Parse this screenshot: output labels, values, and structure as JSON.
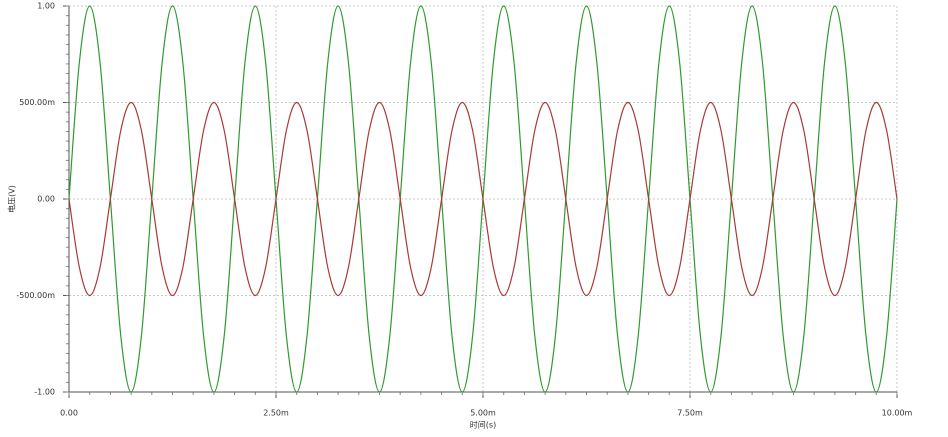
{
  "chart_data": {
    "type": "line",
    "x_label": "时间(s)",
    "y_label": "电压(V)",
    "x": [
      0,
      0.000125,
      0.00025,
      0.000375,
      0.0005,
      0.000625,
      0.00075,
      0.000875,
      0.001,
      0.001125,
      0.00125,
      0.001375,
      0.0015,
      0.001625,
      0.00175,
      0.001875,
      0.002,
      0.002125,
      0.00225,
      0.002375,
      0.0025,
      0.002625,
      0.00275,
      0.002875,
      0.003,
      0.003125,
      0.00325,
      0.003375,
      0.0035,
      0.003625,
      0.00375,
      0.003875,
      0.004,
      0.004125,
      0.00425,
      0.004375,
      0.0045,
      0.004625,
      0.00475,
      0.004875,
      0.005,
      0.005125,
      0.00525,
      0.005375,
      0.0055,
      0.005625,
      0.00575,
      0.005875,
      0.006,
      0.006125,
      0.00625,
      0.006375,
      0.0065,
      0.006625,
      0.00675,
      0.006875,
      0.007,
      0.007125,
      0.00725,
      0.007375,
      0.0075,
      0.007625,
      0.00775,
      0.007875,
      0.008,
      0.008125,
      0.00825,
      0.008375,
      0.0085,
      0.008625,
      0.00875,
      0.008875,
      0.009,
      0.009125,
      0.00925,
      0.009375,
      0.0095,
      0.009625,
      0.00975,
      0.009875,
      0.01
    ],
    "series": [
      {
        "color": "#2f9a2f",
        "values": [
          0,
          0.707,
          1,
          0.707,
          0,
          -0.707,
          -1,
          -0.707,
          0,
          0.707,
          1,
          0.707,
          0,
          -0.707,
          -1,
          -0.707,
          0,
          0.707,
          1,
          0.707,
          0,
          -0.707,
          -1,
          -0.707,
          0,
          0.707,
          1,
          0.707,
          0,
          -0.707,
          -1,
          -0.707,
          0,
          0.707,
          1,
          0.707,
          0,
          -0.707,
          -1,
          -0.707,
          0,
          0.707,
          1,
          0.707,
          0,
          -0.707,
          -1,
          -0.707,
          0,
          0.707,
          1,
          0.707,
          0,
          -0.707,
          -1,
          -0.707,
          0,
          0.707,
          1,
          0.707,
          0,
          -0.707,
          -1,
          -0.707,
          0,
          0.707,
          1,
          0.707,
          0,
          -0.707,
          -1,
          -0.707,
          0,
          0.707,
          1,
          0.707,
          0,
          -0.707,
          -1,
          -0.707,
          0
        ]
      },
      {
        "color": "#a83a3a",
        "values": [
          0,
          -0.354,
          -0.5,
          -0.354,
          0,
          0.354,
          0.5,
          0.354,
          0,
          -0.354,
          -0.5,
          -0.354,
          0,
          0.354,
          0.5,
          0.354,
          0,
          -0.354,
          -0.5,
          -0.354,
          0,
          0.354,
          0.5,
          0.354,
          0,
          -0.354,
          -0.5,
          -0.354,
          0,
          0.354,
          0.5,
          0.354,
          0,
          -0.354,
          -0.5,
          -0.354,
          0,
          0.354,
          0.5,
          0.354,
          0,
          -0.354,
          -0.5,
          -0.354,
          0,
          0.354,
          0.5,
          0.354,
          0,
          -0.354,
          -0.5,
          -0.354,
          0,
          0.354,
          0.5,
          0.354,
          0,
          -0.354,
          -0.5,
          -0.354,
          0,
          0.354,
          0.5,
          0.354,
          0,
          -0.354,
          -0.5,
          -0.354,
          0,
          0.354,
          0.5,
          0.354,
          0,
          -0.354,
          -0.5,
          -0.354,
          0,
          0.354,
          0.5,
          0.354,
          0
        ]
      }
    ],
    "xlim": [
      0,
      0.01
    ],
    "xticks": [
      {
        "value": 0,
        "label": "0.00"
      },
      {
        "value": 0.0025,
        "label": "2.50m"
      },
      {
        "value": 0.005,
        "label": "5.00m"
      },
      {
        "value": 0.0075,
        "label": "7.50m"
      },
      {
        "value": 0.01,
        "label": "10.00m"
      }
    ],
    "ylim": [
      -1,
      1
    ],
    "yticks": [
      {
        "value": -1,
        "label": "-1.00"
      },
      {
        "value": -0.5,
        "label": "-500.00m"
      },
      {
        "value": 0,
        "label": "0.00"
      },
      {
        "value": 0.5,
        "label": "500.00m"
      },
      {
        "value": 1,
        "label": "1.00"
      }
    ],
    "grid": true
  }
}
